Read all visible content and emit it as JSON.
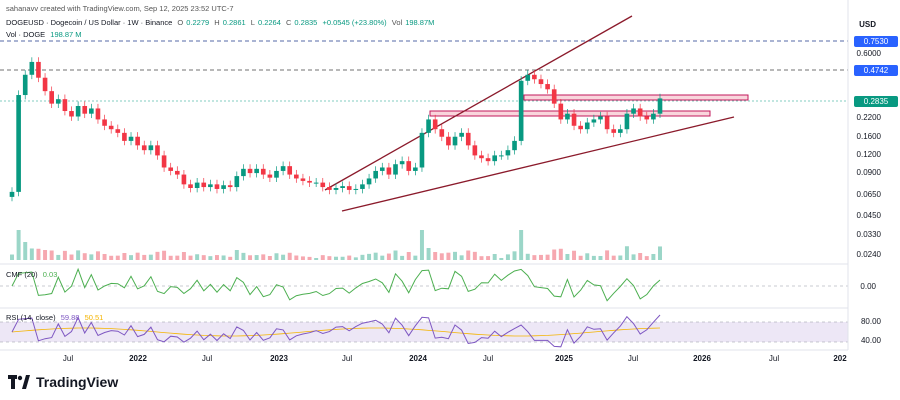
{
  "header": {
    "created_by": "sahanavv created with TradingView.com, Sep 12, 2025 23:52 UTC-7",
    "symbol": "DOGEUSD · Dogecoin / US Dollar · 1W · Binance",
    "open_label": "O",
    "open": "0.2279",
    "high_label": "H",
    "high": "0.2861",
    "low_label": "L",
    "low": "0.2264",
    "close_label": "C",
    "close": "0.2835",
    "change": "+0.0545 (+23.80%)",
    "vol_label": "Vol",
    "vol": "198.87M",
    "vol_line_label": "Vol · DOGE",
    "vol_line_value": "198.87 M"
  },
  "currency": "USD",
  "price_labels": [
    "0.6000",
    "0.2200",
    "0.1600",
    "0.1200",
    "0.0900",
    "0.0650",
    "0.0450",
    "0.0330",
    "0.0240"
  ],
  "price_tags": {
    "top": "0.7530",
    "mid": "0.4742",
    "current": "0.2835"
  },
  "cmf": {
    "label": "CMF (20)",
    "value": "0.03",
    "axis": "0.00"
  },
  "rsi": {
    "label": "RSI (14, close)",
    "value": "59.88",
    "ma": "50.51",
    "axis_hi": "80.00",
    "axis_lo": "40.00"
  },
  "x_labels": [
    {
      "text": "Jul",
      "bold": false
    },
    {
      "text": "2022",
      "bold": true
    },
    {
      "text": "Jul",
      "bold": false
    },
    {
      "text": "2023",
      "bold": true
    },
    {
      "text": "Jul",
      "bold": false
    },
    {
      "text": "2024",
      "bold": true
    },
    {
      "text": "Jul",
      "bold": false
    },
    {
      "text": "2025",
      "bold": true
    },
    {
      "text": "Jul",
      "bold": false
    },
    {
      "text": "2026",
      "bold": true
    },
    {
      "text": "Jul",
      "bold": false
    },
    {
      "text": "202",
      "bold": true
    }
  ],
  "footer": {
    "brand": "TradingView"
  },
  "colors": {
    "up": "#089981",
    "down": "#f23645",
    "trend": "#8b1a2b",
    "cmf": "#4caf50",
    "rsi": "#7e57c2",
    "tag": "#2962ff",
    "tag_current": "#089981"
  },
  "chart_data": {
    "type": "candlestick",
    "title": "DOGEUSD · Dogecoin / US Dollar · 1W · Binance",
    "y_scale": "log",
    "ylim": [
      0.02,
      0.8
    ],
    "series": [
      {
        "name": "DOGEUSD",
        "close": [
          0.06,
          0.3,
          0.42,
          0.52,
          0.4,
          0.32,
          0.26,
          0.28,
          0.23,
          0.21,
          0.25,
          0.22,
          0.24,
          0.2,
          0.18,
          0.17,
          0.16,
          0.14,
          0.15,
          0.13,
          0.12,
          0.13,
          0.11,
          0.09,
          0.085,
          0.08,
          0.068,
          0.064,
          0.07,
          0.065,
          0.068,
          0.063,
          0.067,
          0.065,
          0.078,
          0.088,
          0.082,
          0.088,
          0.08,
          0.076,
          0.085,
          0.092,
          0.08,
          0.075,
          0.072,
          0.07,
          0.07,
          0.065,
          0.062,
          0.064,
          0.066,
          0.062,
          0.063,
          0.068,
          0.075,
          0.085,
          0.09,
          0.08,
          0.095,
          0.1,
          0.085,
          0.09,
          0.16,
          0.2,
          0.17,
          0.15,
          0.13,
          0.15,
          0.16,
          0.13,
          0.11,
          0.105,
          0.1,
          0.11,
          0.11,
          0.12,
          0.14,
          0.38,
          0.42,
          0.39,
          0.36,
          0.33,
          0.26,
          0.2,
          0.22,
          0.18,
          0.17,
          0.19,
          0.2,
          0.21,
          0.17,
          0.16,
          0.17,
          0.22,
          0.24,
          0.21,
          0.2,
          0.22,
          0.2835
        ]
      }
    ],
    "annotations": [
      {
        "type": "horizontal",
        "value": 0.753
      },
      {
        "type": "horizontal",
        "value": 0.4742
      },
      {
        "type": "horizontal",
        "value": 0.2835
      },
      {
        "type": "zone",
        "label": "resistance"
      },
      {
        "type": "zone",
        "label": "support"
      },
      {
        "type": "trendline",
        "label": "upper channel"
      },
      {
        "type": "trendline",
        "label": "lower channel"
      },
      {
        "type": "trendline",
        "label": "rising support"
      }
    ]
  }
}
